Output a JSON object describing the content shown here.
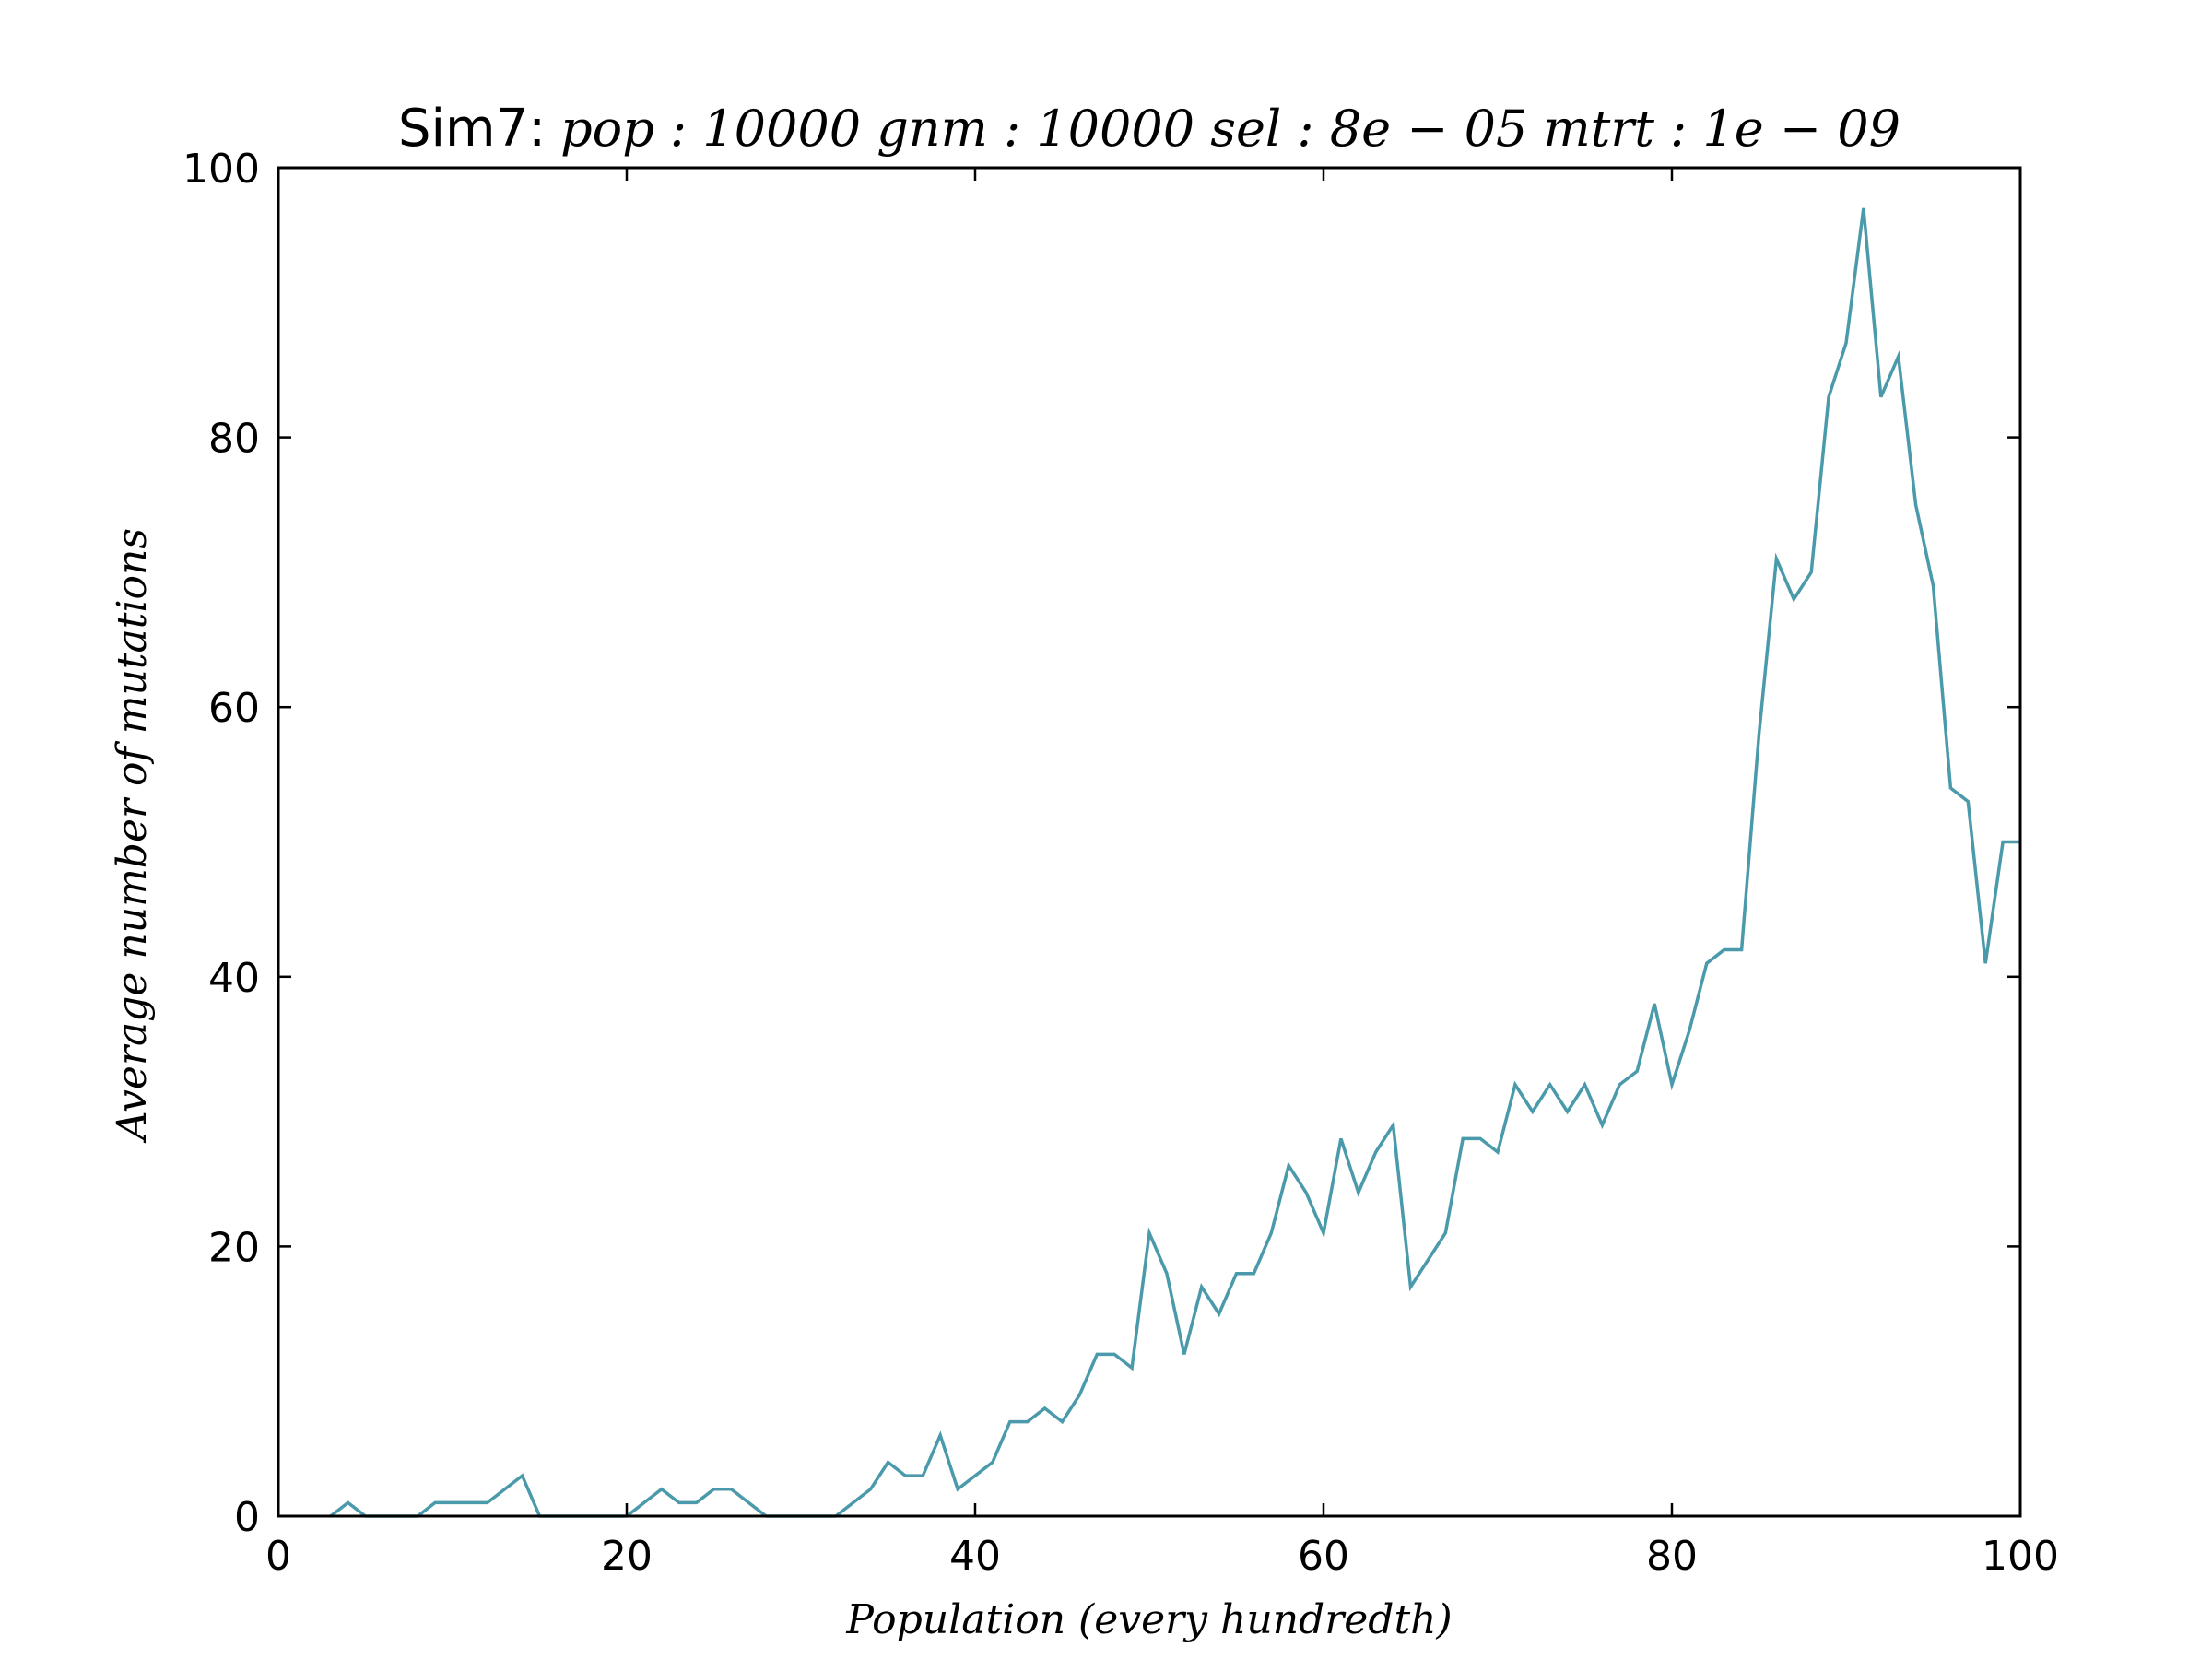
{
  "chart_data": {
    "type": "line",
    "title_prefix": "Sim7:",
    "title_params": "pop : 10000  gnm : 10000  sel : 8e − 05  mtrt : 1e − 09",
    "xlabel": "Population (every hundredth)",
    "ylabel": "Average number of mutations",
    "xlim": [
      0,
      100
    ],
    "ylim": [
      0,
      100
    ],
    "xticks": [
      0,
      20,
      40,
      60,
      80,
      100
    ],
    "yticks": [
      0,
      20,
      40,
      60,
      80,
      100
    ],
    "grid": false,
    "line_color": "#4a9aab",
    "series": [
      {
        "x": [
          3,
          4,
          5,
          6,
          7,
          8,
          9,
          10,
          11,
          12,
          13,
          14,
          15,
          16,
          17,
          18,
          19,
          20,
          21,
          22,
          23,
          24,
          25,
          26,
          27,
          28,
          29,
          30,
          31,
          32,
          33,
          34,
          35,
          36,
          37,
          38,
          39,
          40,
          41,
          42,
          43,
          44,
          45,
          46,
          47,
          48,
          49,
          50,
          51,
          52,
          53,
          54,
          55,
          56,
          57,
          58,
          59,
          60,
          61,
          62,
          63,
          64,
          65,
          66,
          67,
          68,
          69,
          70,
          71,
          72,
          73,
          74,
          75,
          76,
          77,
          78,
          79,
          80,
          81,
          82,
          83,
          84,
          85,
          86,
          87,
          88,
          89,
          90,
          91,
          92,
          93,
          94,
          95,
          96,
          97,
          98,
          99,
          100
        ],
        "y": [
          0,
          1,
          0,
          0,
          0,
          0,
          1,
          1,
          1,
          1,
          2,
          3,
          0,
          0,
          0,
          0,
          0,
          0,
          1,
          2,
          1,
          1,
          2,
          2,
          1,
          0,
          0,
          0,
          0,
          0,
          1,
          2,
          4,
          3,
          3,
          6,
          2,
          3,
          4,
          7,
          7,
          8,
          7,
          9,
          12,
          12,
          11,
          21,
          18,
          12,
          17,
          15,
          18,
          18,
          21,
          26,
          24,
          21,
          28,
          24,
          27,
          29,
          17,
          19,
          21,
          28,
          28,
          27,
          32,
          30,
          32,
          30,
          32,
          29,
          32,
          33,
          38,
          32,
          36,
          41,
          42,
          42,
          58,
          71,
          68,
          70,
          83,
          87,
          97,
          83,
          86,
          75,
          69,
          54,
          53,
          41,
          50,
          50
        ]
      }
    ]
  }
}
